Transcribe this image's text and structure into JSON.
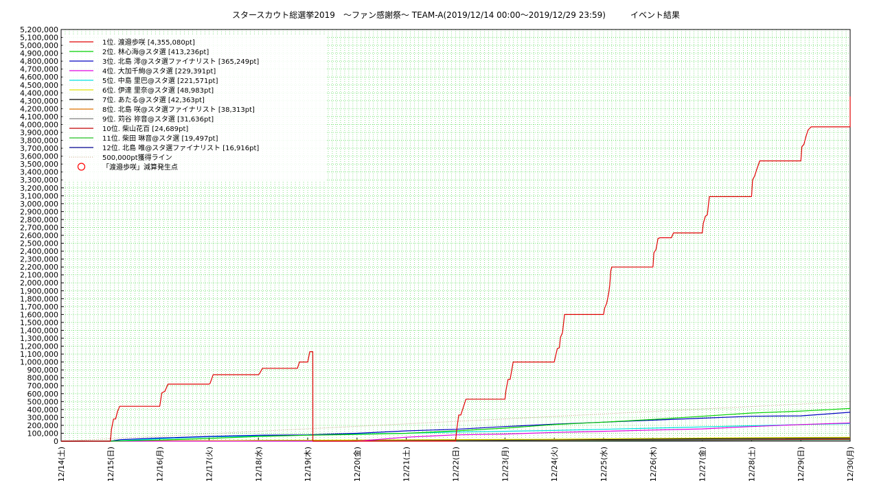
{
  "chart_data": {
    "type": "line",
    "title": "スタースカウト総選挙2019　～ファン感謝祭～ TEAM-A(2019/12/14 00:00～2019/12/29 23:59)　　　イベント結果",
    "xlabel": "",
    "ylabel": "",
    "ylim": [
      0,
      5200000
    ],
    "y_tick_step": 100000,
    "xlim": [
      "2019-12-14",
      "2019-12-30"
    ],
    "x_tick_labels": [
      "12/14(土)",
      "12/15(日)",
      "12/16(月)",
      "12/17(火)",
      "12/18(水)",
      "12/19(木)",
      "12/20(金)",
      "12/21(土)",
      "12/22(日)",
      "12/23(月)",
      "12/24(火)",
      "12/25(水)",
      "12/26(木)",
      "12/27(金)",
      "12/28(土)",
      "12/29(日)",
      "12/30(月)"
    ],
    "grid": true,
    "legend_position": "top-left",
    "series": [
      {
        "name": "1位. 渡邉歩咲 [4,355,080pt]",
        "color": "#e00000",
        "x": [
          "2019-12-14 00:00",
          "2019-12-15 00:00",
          "2019-12-15 00:30",
          "2019-12-15 01:30",
          "2019-12-15 02:30",
          "2019-12-15 03:30",
          "2019-12-15 04:30",
          "2019-12-15 06:00",
          "2019-12-16 00:00",
          "2019-12-16 01:00",
          "2019-12-16 02:30",
          "2019-12-16 04:00",
          "2019-12-17 00:00",
          "2019-12-17 00:30",
          "2019-12-17 02:00",
          "2019-12-18 00:00",
          "2019-12-18 00:30",
          "2019-12-18 02:00",
          "2019-12-18 19:00",
          "2019-12-18 20:00",
          "2019-12-18 22:00",
          "2019-12-19 00:00",
          "2019-12-19 01:00",
          "2019-12-19 02:00",
          "2019-12-19 02:30",
          "2019-12-19 02:31",
          "2019-12-22 00:00",
          "2019-12-22 00:30",
          "2019-12-22 01:30",
          "2019-12-22 02:30",
          "2019-12-22 04:00",
          "2019-12-22 05:00",
          "2019-12-23 00:00",
          "2019-12-23 00:30",
          "2019-12-23 01:30",
          "2019-12-23 02:30",
          "2019-12-23 04:00",
          "2019-12-24 00:00",
          "2019-12-24 00:30",
          "2019-12-24 01:30",
          "2019-12-24 02:30",
          "2019-12-24 03:00",
          "2019-12-24 04:00",
          "2019-12-24 05:00",
          "2019-12-25 00:00",
          "2019-12-25 00:30",
          "2019-12-25 01:30",
          "2019-12-25 02:30",
          "2019-12-25 03:00",
          "2019-12-25 03:30",
          "2019-12-25 04:00",
          "2019-12-26 00:00",
          "2019-12-26 00:30",
          "2019-12-26 01:30",
          "2019-12-26 02:30",
          "2019-12-26 03:30",
          "2019-12-26 09:00",
          "2019-12-26 10:00",
          "2019-12-27 00:00",
          "2019-12-27 00:30",
          "2019-12-27 01:30",
          "2019-12-27 02:30",
          "2019-12-27 03:30",
          "2019-12-28 00:00",
          "2019-12-28 00:30",
          "2019-12-28 01:30",
          "2019-12-28 02:30",
          "2019-12-28 04:00",
          "2019-12-29 00:00",
          "2019-12-29 00:30",
          "2019-12-29 01:30",
          "2019-12-29 02:30",
          "2019-12-29 03:30",
          "2019-12-29 05:00",
          "2019-12-29 23:59",
          "2019-12-30 00:00",
          "2019-12-30 01:30",
          "2019-12-30 03:00",
          "2019-12-30 03:30",
          "2019-12-30 04:00"
        ],
        "y": [
          0,
          0,
          150000,
          280000,
          280000,
          380000,
          440000,
          440000,
          440000,
          610000,
          630000,
          720000,
          720000,
          730000,
          840000,
          840000,
          850000,
          920000,
          920000,
          1000000,
          1000000,
          1000000,
          1130000,
          1130000,
          1130000,
          0,
          0,
          140000,
          330000,
          330000,
          450000,
          530000,
          530000,
          640000,
          780000,
          780000,
          1000000,
          1000000,
          1060000,
          1170000,
          1180000,
          1310000,
          1370000,
          1600000,
          1600000,
          1680000,
          1740000,
          1870000,
          1970000,
          2150000,
          2200000,
          2200000,
          2380000,
          2420000,
          2560000,
          2570000,
          2570000,
          2630000,
          2630000,
          2750000,
          2840000,
          2860000,
          3090000,
          3090000,
          3300000,
          3350000,
          3430000,
          3540000,
          3540000,
          3720000,
          3750000,
          3850000,
          3930000,
          3970000,
          3970000,
          4100000,
          4180000,
          4180000,
          4350000,
          4355080
        ]
      },
      {
        "name": "2位. 林心海@スタ選 [413,236pt]",
        "color": "#00d000",
        "x": [
          "2019-12-14 00:00",
          "2019-12-15 00:00",
          "2019-12-16 00:00",
          "2019-12-17 00:00",
          "2019-12-18 00:00",
          "2019-12-19 00:00",
          "2019-12-20 00:00",
          "2019-12-21 00:00",
          "2019-12-22 00:00",
          "2019-12-23 00:00",
          "2019-12-24 00:00",
          "2019-12-25 00:00",
          "2019-12-26 00:00",
          "2019-12-27 00:00",
          "2019-12-28 00:00",
          "2019-12-29 00:00",
          "2019-12-30 04:00"
        ],
        "y": [
          0,
          0,
          15000,
          35000,
          60000,
          75000,
          85000,
          100000,
          130000,
          165000,
          210000,
          240000,
          275000,
          315000,
          355000,
          380000,
          413236
        ]
      },
      {
        "name": "3位. 北島 澪@スタ選ファイナリスト [365,249pt]",
        "color": "#0000c0",
        "x": [
          "2019-12-14 00:00",
          "2019-12-15 00:00",
          "2019-12-15 05:00",
          "2019-12-16 00:00",
          "2019-12-17 00:00",
          "2019-12-18 00:00",
          "2019-12-19 00:00",
          "2019-12-20 00:00",
          "2019-12-21 00:00",
          "2019-12-22 00:00",
          "2019-12-23 00:00",
          "2019-12-24 00:00",
          "2019-12-25 00:00",
          "2019-12-26 00:00",
          "2019-12-27 00:00",
          "2019-12-28 00:00",
          "2019-12-29 00:00",
          "2019-12-30 04:00"
        ],
        "y": [
          0,
          0,
          20000,
          40000,
          60000,
          75000,
          80000,
          100000,
          130000,
          150000,
          185000,
          215000,
          240000,
          265000,
          290000,
          315000,
          320000,
          365249
        ]
      },
      {
        "name": "4位. 大加千絢@スタ選 [229,391pt]",
        "color": "#e000e0",
        "x": [
          "2019-12-14 00:00",
          "2019-12-20 00:00",
          "2019-12-21 00:00",
          "2019-12-22 00:00",
          "2019-12-23 00:00",
          "2019-12-24 00:00",
          "2019-12-25 00:00",
          "2019-12-26 00:00",
          "2019-12-27 00:00",
          "2019-12-28 00:00",
          "2019-12-29 00:00",
          "2019-12-30 04:00"
        ],
        "y": [
          0,
          0,
          50000,
          80000,
          90000,
          110000,
          125000,
          140000,
          155000,
          185000,
          210000,
          229391
        ]
      },
      {
        "name": "5位. 中島 里巴@スタ選 [221,571pt]",
        "color": "#00e0e0",
        "x": [
          "2019-12-14 00:00",
          "2019-12-15 00:00",
          "2019-12-16 00:00",
          "2019-12-17 00:00",
          "2019-12-18 00:00",
          "2019-12-19 00:00",
          "2019-12-20 00:00",
          "2019-12-21 00:00",
          "2019-12-22 00:00",
          "2019-12-23 00:00",
          "2019-12-24 00:00",
          "2019-12-25 00:00",
          "2019-12-26 00:00",
          "2019-12-27 00:00",
          "2019-12-28 00:00",
          "2019-12-29 00:00",
          "2019-12-30 04:00"
        ],
        "y": [
          0,
          0,
          30000,
          55000,
          65000,
          80000,
          90000,
          100000,
          115000,
          125000,
          135000,
          150000,
          165000,
          180000,
          195000,
          210000,
          221571
        ]
      },
      {
        "name": "6位. 伊達 里奈@スタ選 [48,983pt]",
        "color": "#e0e000",
        "x": [
          "2019-12-14 00:00",
          "2019-12-16 00:00",
          "2019-12-20 00:00",
          "2019-12-24 00:00",
          "2019-12-27 00:00",
          "2019-12-30 04:00"
        ],
        "y": [
          0,
          5000,
          15000,
          25000,
          40000,
          48983
        ]
      },
      {
        "name": "7位. あたる@スタ選 [42,363pt]",
        "color": "#000000",
        "x": [
          "2019-12-14 00:00",
          "2019-12-16 00:00",
          "2019-12-20 00:00",
          "2019-12-24 00:00",
          "2019-12-27 00:00",
          "2019-12-30 04:00"
        ],
        "y": [
          0,
          5000,
          12000,
          20000,
          30000,
          42363
        ]
      },
      {
        "name": "8位. 北島 咲@スタ選ファイナリスト [38,313pt]",
        "color": "#e07000",
        "x": [
          "2019-12-14 00:00",
          "2019-12-16 00:00",
          "2019-12-20 00:00",
          "2019-12-24 00:00",
          "2019-12-27 00:00",
          "2019-12-30 04:00"
        ],
        "y": [
          0,
          4000,
          12000,
          20000,
          35000,
          38313
        ]
      },
      {
        "name": "9位. 苅谷 祢音@スタ選 [31,636pt]",
        "color": "#808080",
        "x": [
          "2019-12-14 00:00",
          "2019-12-16 00:00",
          "2019-12-20 00:00",
          "2019-12-24 00:00",
          "2019-12-27 00:00",
          "2019-12-30 04:00"
        ],
        "y": [
          0,
          3000,
          8000,
          15000,
          22000,
          31636
        ]
      },
      {
        "name": "10位. 柴山花百 [24,689pt]",
        "color": "#c00000",
        "x": [
          "2019-12-14 00:00",
          "2019-12-16 00:00",
          "2019-12-20 00:00",
          "2019-12-24 00:00",
          "2019-12-27 00:00",
          "2019-12-30 04:00"
        ],
        "y": [
          0,
          2000,
          6000,
          12000,
          18000,
          24689
        ]
      },
      {
        "name": "11位. 柴田 琳音@スタ選 [19,497pt]",
        "color": "#20c020",
        "x": [
          "2019-12-14 00:00",
          "2019-12-16 00:00",
          "2019-12-20 00:00",
          "2019-12-24 00:00",
          "2019-12-27 00:00",
          "2019-12-30 04:00"
        ],
        "y": [
          0,
          2000,
          5000,
          9000,
          14000,
          19497
        ]
      },
      {
        "name": "12位. 北島 唯@スタ選ファイナリスト [16,916pt]",
        "color": "#000090",
        "x": [
          "2019-12-14 00:00",
          "2019-12-16 00:00",
          "2019-12-20 00:00",
          "2019-12-24 00:00",
          "2019-12-27 00:00",
          "2019-12-30 04:00"
        ],
        "y": [
          0,
          1500,
          4000,
          8000,
          12000,
          16916
        ]
      }
    ],
    "reference_line": {
      "name": "500,000pt獲得ライン",
      "color": "#c8a080",
      "x": [
        "2019-12-14 00:00",
        "2019-12-30 04:00"
      ],
      "y": [
        0,
        500000
      ]
    },
    "marker_legend": {
      "name": "「渡邉歩咲」減算発生点",
      "color": "#ff0000"
    }
  }
}
